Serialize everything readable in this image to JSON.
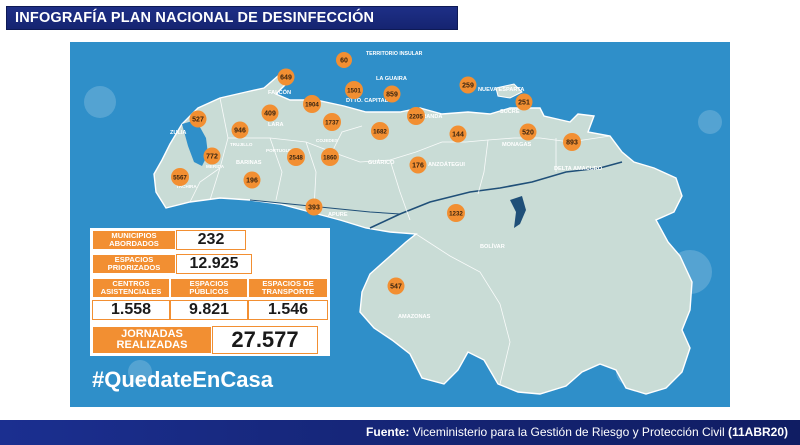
{
  "title": "INFOGRAFÍA PLAN NACIONAL DE DESINFECCIÓN",
  "colors": {
    "title_bg": "#1e2f86",
    "map_bg": "#2f8fc9",
    "land": "#c9dcd6",
    "marker": "#f28f32",
    "label_orange": "#f28f32",
    "footer_bg": "#142371"
  },
  "regions": [
    {
      "name": "FALCÓN"
    },
    {
      "name": "ZULIA"
    },
    {
      "name": "LARA"
    },
    {
      "name": "TRUJILLO"
    },
    {
      "name": "PORTUGUESA"
    },
    {
      "name": "COJEDES"
    },
    {
      "name": "MÉRIDA"
    },
    {
      "name": "TÁCHIRA"
    },
    {
      "name": "BARINAS"
    },
    {
      "name": "APURE"
    },
    {
      "name": "GUÁRICO"
    },
    {
      "name": "MIRANDA"
    },
    {
      "name": "DTTO. CAPITAL"
    },
    {
      "name": "LA GUAIRA"
    },
    {
      "name": "TERRITORIO INSULAR"
    },
    {
      "name": "NUEVA ESPARTA"
    },
    {
      "name": "SUCRE"
    },
    {
      "name": "MONAGAS"
    },
    {
      "name": "ANZOÁTEGUI"
    },
    {
      "name": "DELTA AMACURO"
    },
    {
      "name": "BOLÍVAR"
    },
    {
      "name": "AMAZONAS"
    }
  ],
  "markers": [
    {
      "value": "60"
    },
    {
      "value": "649"
    },
    {
      "value": "1501"
    },
    {
      "value": "859"
    },
    {
      "value": "259"
    },
    {
      "value": "251"
    },
    {
      "value": "527"
    },
    {
      "value": "409"
    },
    {
      "value": "1904"
    },
    {
      "value": "1737"
    },
    {
      "value": "1682"
    },
    {
      "value": "2205"
    },
    {
      "value": "144"
    },
    {
      "value": "520"
    },
    {
      "value": "893"
    },
    {
      "value": "946"
    },
    {
      "value": "772"
    },
    {
      "value": "2548"
    },
    {
      "value": "1860"
    },
    {
      "value": "176"
    },
    {
      "value": "5567"
    },
    {
      "value": "196"
    },
    {
      "value": "393"
    },
    {
      "value": "1232"
    },
    {
      "value": "547"
    }
  ],
  "stats": {
    "municipios_label": "MUNICIPIOS ABORDADOS",
    "municipios_value": "232",
    "espacios_label": "ESPACIOS PRIORIZADOS",
    "espacios_value": "12.925",
    "centros_label": "CENTROS ASISTENCIALES",
    "centros_value": "1.558",
    "publicos_label": "ESPACIOS PÚBLICOS",
    "publicos_value": "9.821",
    "transporte_label": "ESPACIOS DE TRANSPORTE",
    "transporte_value": "1.546",
    "jornadas_label": "JORNADAS REALIZADAS",
    "jornadas_value": "27.577"
  },
  "hashtag": "#QuedateEnCasa",
  "footer": {
    "source_label": "Fuente:",
    "source_text": " Viceministerio para la Gestión de Riesgo y Protección Civil ",
    "date": "(11ABR20)"
  }
}
